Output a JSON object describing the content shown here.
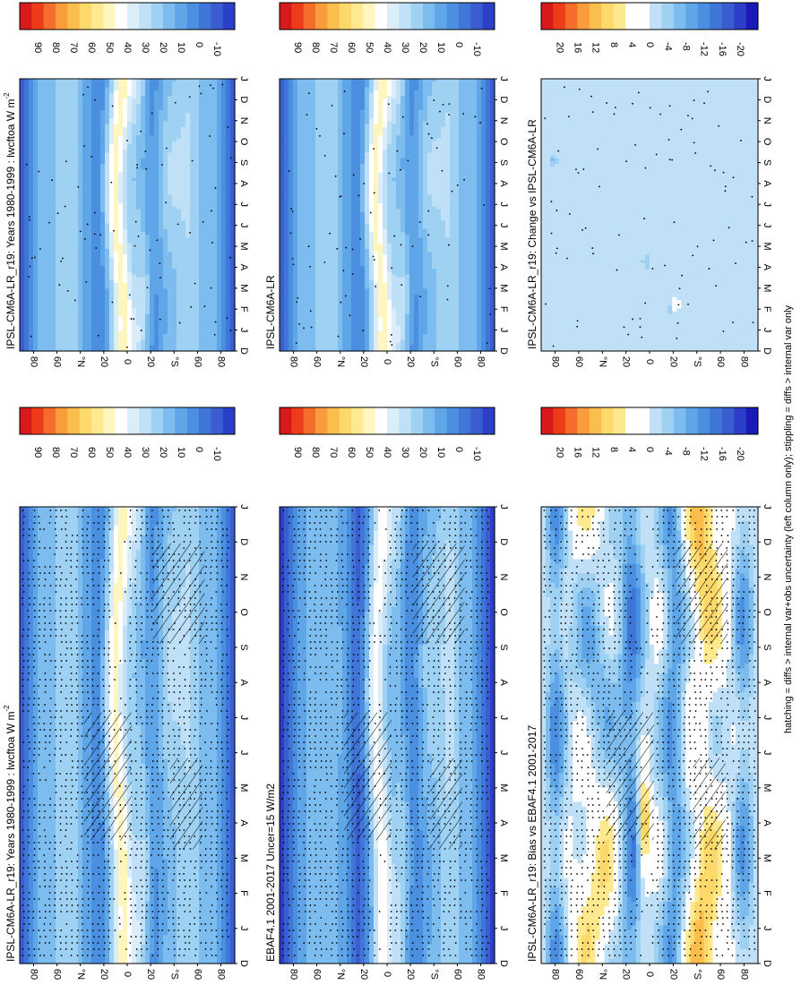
{
  "footnote": "hatching = diffs > internal var+obs uncertainty (left column only); stippling = diffs > internal var only",
  "months": [
    "D",
    "J",
    "F",
    "M",
    "A",
    "M",
    "J",
    "J",
    "A",
    "S",
    "O",
    "N",
    "D",
    "J"
  ],
  "lat_ticks": [
    "80",
    "60",
    "°N",
    "20",
    "0",
    "20",
    "°S",
    "60",
    "80"
  ],
  "scales": {
    "abs": {
      "labels": [
        "90",
        "80",
        "70",
        "60",
        "50",
        "40",
        "30",
        "20",
        "10",
        "0",
        "-10"
      ],
      "colors": [
        "#d7191c",
        "#ee3b1a",
        "#f46d2a",
        "#f99c3c",
        "#fbbd4b",
        "#fdd86a",
        "#fee98e",
        "#fff6bf",
        "#ffffff",
        "#dcedfa",
        "#bfe0f6",
        "#9fd1f2",
        "#7dbcee",
        "#5ea6e8",
        "#4a8fe0",
        "#3f76d8",
        "#3a5ed0",
        "#2b3fc8"
      ]
    },
    "diff": {
      "labels": [
        "20",
        "16",
        "12",
        "8",
        "4",
        "0",
        "-4",
        "-8",
        "-12",
        "-16",
        "-20"
      ],
      "colors": [
        "#d7191c",
        "#ee3b1a",
        "#f46d2a",
        "#f99c3c",
        "#fbbd4b",
        "#fdd86a",
        "#fee98e",
        "#ffffff",
        "#ffffff",
        "#bfe0f6",
        "#9fd1f2",
        "#7dbcee",
        "#5ea6e8",
        "#4a8fe0",
        "#3f76d8",
        "#3a5ed0",
        "#2b3fc8",
        "#1a1ab8"
      ]
    }
  },
  "panels": [
    {
      "id": "p1",
      "title": "IPSL-CM6A-LR_r19: Years 1980-1999 : lwcftoa W m",
      "title_sup": "-2",
      "scale": "abs",
      "field": "model",
      "hatch": true,
      "stipple": "dense"
    },
    {
      "id": "p2",
      "title": "IPSL-CM6A-LR_r19: Years 1980-1999 : lwcftoa W m",
      "title_sup": "-2",
      "scale": "abs",
      "field": "model",
      "hatch": false,
      "stipple": "sparse"
    },
    {
      "id": "p3",
      "title": "EBAF4.1 2001-2017 Uncer=15 W/m2",
      "title_sup": "",
      "scale": "abs",
      "field": "obs",
      "hatch": true,
      "stipple": "dense"
    },
    {
      "id": "p4",
      "title": "IPSL-CM6A-LR",
      "title_sup": "",
      "scale": "abs",
      "field": "model",
      "hatch": false,
      "stipple": "sparse"
    },
    {
      "id": "p5",
      "title": "IPSL-CM6A-LR_r19: Bias vs EBAF4.1 2001-2017",
      "title_sup": "",
      "scale": "diff",
      "field": "bias",
      "hatch": true,
      "stipple": "dense"
    },
    {
      "id": "p6",
      "title": "IPSL-CM6A-LR_r19: Change vs IPSL-CM6A-LR",
      "title_sup": "",
      "scale": "diff",
      "field": "change",
      "hatch": false,
      "stipple": "sparse"
    }
  ],
  "chart_data": [
    {
      "type": "heatmap",
      "title": "IPSL-CM6A-LR_r19: Years 1980-1999 : lwcftoa W m-2",
      "x_categories": [
        "D",
        "J",
        "F",
        "M",
        "A",
        "M",
        "J",
        "J",
        "A",
        "S",
        "O",
        "N",
        "D",
        "J"
      ],
      "y_ticks": [
        "80",
        "60",
        "°N",
        "20",
        "0",
        "20",
        "°S",
        "60",
        "80"
      ],
      "colorbar": [
        "90",
        "80",
        "70",
        "60",
        "50",
        "40",
        "30",
        "20",
        "10",
        "0",
        "-10"
      ],
      "grid": false
    },
    {
      "type": "heatmap",
      "title": "IPSL-CM6A-LR_r19: Years 1980-1999 : lwcftoa W m-2",
      "x_categories": [
        "D",
        "J",
        "F",
        "M",
        "A",
        "M",
        "J",
        "J",
        "A",
        "S",
        "O",
        "N",
        "D",
        "J"
      ],
      "y_ticks": [
        "80",
        "60",
        "°N",
        "20",
        "0",
        "20",
        "°S",
        "60",
        "80"
      ],
      "colorbar": [
        "90",
        "80",
        "70",
        "60",
        "50",
        "40",
        "30",
        "20",
        "10",
        "0",
        "-10"
      ],
      "grid": false
    },
    {
      "type": "heatmap",
      "title": "EBAF4.1 2001-2017 Uncer=15 W/m2",
      "x_categories": [
        "D",
        "J",
        "F",
        "M",
        "A",
        "M",
        "J",
        "J",
        "A",
        "S",
        "O",
        "N",
        "D",
        "J"
      ],
      "y_ticks": [
        "80",
        "60",
        "°N",
        "20",
        "0",
        "20",
        "°S",
        "60",
        "80"
      ],
      "colorbar": [
        "90",
        "80",
        "70",
        "60",
        "50",
        "40",
        "30",
        "20",
        "10",
        "0",
        "-10"
      ],
      "grid": false
    },
    {
      "type": "heatmap",
      "title": "IPSL-CM6A-LR",
      "x_categories": [
        "D",
        "J",
        "F",
        "M",
        "A",
        "M",
        "J",
        "J",
        "A",
        "S",
        "O",
        "N",
        "D",
        "J"
      ],
      "y_ticks": [
        "80",
        "60",
        "°N",
        "20",
        "0",
        "20",
        "°S",
        "60",
        "80"
      ],
      "colorbar": [
        "90",
        "80",
        "70",
        "60",
        "50",
        "40",
        "30",
        "20",
        "10",
        "0",
        "-10"
      ],
      "grid": false
    },
    {
      "type": "heatmap",
      "title": "IPSL-CM6A-LR_r19: Bias vs EBAF4.1 2001-2017",
      "x_categories": [
        "D",
        "J",
        "F",
        "M",
        "A",
        "M",
        "J",
        "J",
        "A",
        "S",
        "O",
        "N",
        "D",
        "J"
      ],
      "y_ticks": [
        "80",
        "60",
        "°N",
        "20",
        "0",
        "20",
        "°S",
        "60",
        "80"
      ],
      "colorbar": [
        "20",
        "16",
        "12",
        "8",
        "4",
        "0",
        "-4",
        "-8",
        "-12",
        "-16",
        "-20"
      ],
      "grid": false
    },
    {
      "type": "heatmap",
      "title": "IPSL-CM6A-LR_r19: Change vs IPSL-CM6A-LR",
      "x_categories": [
        "D",
        "J",
        "F",
        "M",
        "A",
        "M",
        "J",
        "J",
        "A",
        "S",
        "O",
        "N",
        "D",
        "J"
      ],
      "y_ticks": [
        "80",
        "60",
        "°N",
        "20",
        "0",
        "20",
        "°S",
        "60",
        "80"
      ],
      "colorbar": [
        "20",
        "16",
        "12",
        "8",
        "4",
        "0",
        "-4",
        "-8",
        "-12",
        "-16",
        "-20"
      ],
      "grid": false
    }
  ]
}
